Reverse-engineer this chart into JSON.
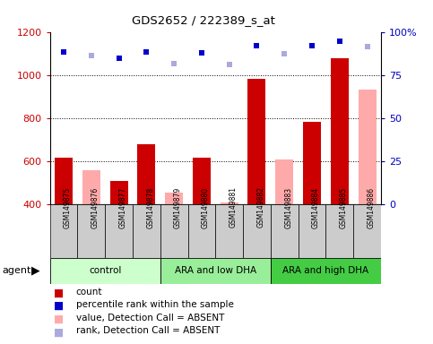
{
  "title": "GDS2652 / 222389_s_at",
  "samples": [
    "GSM149875",
    "GSM149876",
    "GSM149877",
    "GSM149878",
    "GSM149879",
    "GSM149880",
    "GSM149881",
    "GSM149882",
    "GSM149883",
    "GSM149884",
    "GSM149885",
    "GSM149886"
  ],
  "groups": [
    {
      "label": "control",
      "start": 0,
      "end": 4,
      "color": "#ccffcc"
    },
    {
      "label": "ARA and low DHA",
      "start": 4,
      "end": 8,
      "color": "#99ee99"
    },
    {
      "label": "ARA and high DHA",
      "start": 8,
      "end": 12,
      "color": "#44cc44"
    }
  ],
  "bar_values": [
    620,
    560,
    510,
    680,
    455,
    620,
    410,
    985,
    610,
    785,
    1080,
    935
  ],
  "bar_colors": [
    "#cc0000",
    "#ffaaaa",
    "#cc0000",
    "#cc0000",
    "#ffaaaa",
    "#cc0000",
    "#ffaaaa",
    "#cc0000",
    "#ffaaaa",
    "#cc0000",
    "#cc0000",
    "#ffaaaa"
  ],
  "dot_values": [
    1110,
    1095,
    1080,
    1110,
    1055,
    1105,
    1050,
    1140,
    1100,
    1140,
    1160,
    1135
  ],
  "dot_colors": [
    "#0000cc",
    "#aaaadd",
    "#0000cc",
    "#0000cc",
    "#aaaadd",
    "#0000cc",
    "#aaaadd",
    "#0000cc",
    "#aaaadd",
    "#0000cc",
    "#0000cc",
    "#aaaadd"
  ],
  "ylim_left": [
    400,
    1200
  ],
  "ylim_right": [
    0,
    100
  ],
  "yticks_left": [
    400,
    600,
    800,
    1000,
    1200
  ],
  "yticks_right": [
    0,
    25,
    50,
    75,
    100
  ],
  "left_color": "#cc0000",
  "right_color": "#0000bb",
  "bg_color": "#cccccc",
  "legend": [
    {
      "label": "count",
      "color": "#cc0000"
    },
    {
      "label": "percentile rank within the sample",
      "color": "#0000cc"
    },
    {
      "label": "value, Detection Call = ABSENT",
      "color": "#ffaaaa"
    },
    {
      "label": "rank, Detection Call = ABSENT",
      "color": "#aaaadd"
    }
  ]
}
